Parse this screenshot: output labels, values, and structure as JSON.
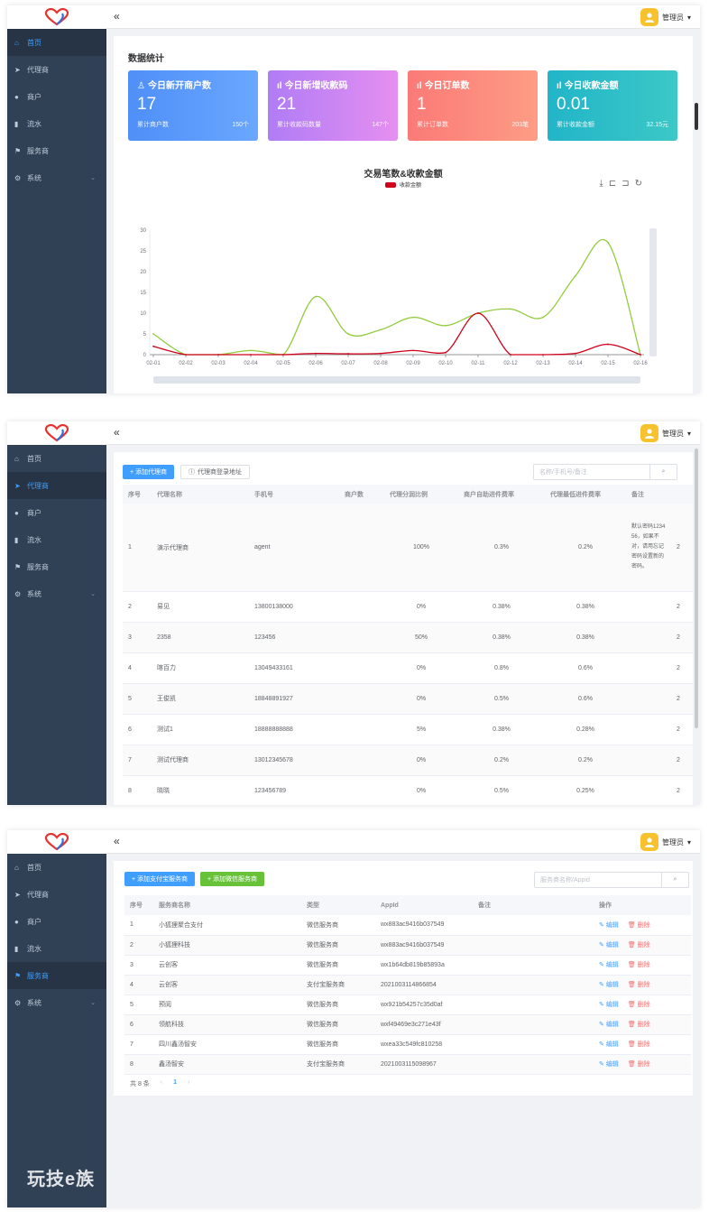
{
  "app": {
    "fold_icon": "«",
    "user_name": "管理员",
    "user_caret": "▾",
    "menu": [
      {
        "icon": "home-icon",
        "glyph": "⌂",
        "label": "首页"
      },
      {
        "icon": "send-icon",
        "glyph": "➤",
        "label": "代理商"
      },
      {
        "icon": "user-icon",
        "glyph": "●",
        "label": "商户"
      },
      {
        "icon": "bar-chart-icon",
        "glyph": "▮",
        "label": "流水"
      },
      {
        "icon": "flag-icon",
        "glyph": "⚑",
        "label": "服务商"
      },
      {
        "icon": "gear-icon",
        "glyph": "⚙",
        "label": "系统"
      }
    ],
    "chevron": "⌄"
  },
  "dashboard": {
    "section_title": "数据统计",
    "stats": [
      {
        "title": "今日新开商户数",
        "icon": "user-outline-icon",
        "glyph": "♙",
        "value": "17",
        "footer_label": "累计商户数",
        "footer_value": "150个",
        "color_from": "#4f8ff7",
        "color_to": "#6aa7ff"
      },
      {
        "title": "今日新增收款码",
        "icon": "bar-icon",
        "glyph": "ıl",
        "value": "21",
        "footer_label": "累计收款码数量",
        "footer_value": "147个",
        "color_from": "#b07cf5",
        "color_to": "#e58ff0"
      },
      {
        "title": "今日订单数",
        "icon": "bar-icon",
        "glyph": "ıl",
        "value": "1",
        "footer_label": "累计订单数",
        "footer_value": "203笔",
        "color_from": "#fb7a77",
        "color_to": "#fd9c85"
      },
      {
        "title": "今日收款金额",
        "icon": "bar-icon",
        "glyph": "ıl",
        "value": "0.01",
        "footer_label": "累计收款金额",
        "footer_value": "32.15元",
        "color_from": "#22b5c8",
        "color_to": "#3cc8c7"
      }
    ]
  },
  "chart_data": {
    "type": "line",
    "title": "交易笔数&收款金额",
    "legend": [
      {
        "name": "收款金额",
        "color": "#d0021b"
      }
    ],
    "legend_position": "top",
    "toolbox": [
      "download-icon",
      "zoom-icon",
      "zoom-reset-icon",
      "restore-icon"
    ],
    "toolbox_glyphs": [
      "⤓",
      "⊏",
      "⊐",
      "↻"
    ],
    "x": [
      "02-01",
      "02-02",
      "02-03",
      "02-04",
      "02-05",
      "02-06",
      "02-07",
      "02-08",
      "02-09",
      "02-10",
      "02-11",
      "02-12",
      "02-13",
      "02-14",
      "02-15",
      "02-16"
    ],
    "yticks": [
      0,
      5,
      10,
      15,
      20,
      25,
      30
    ],
    "ylim": [
      0,
      30
    ],
    "grid": false,
    "series": [
      {
        "color": "#91cc3c",
        "values": [
          5,
          0,
          0,
          1,
          0,
          14,
          5,
          6,
          9,
          7,
          10,
          11,
          9,
          19,
          27,
          0
        ]
      },
      {
        "name": "收款金额",
        "color": "#d0021b",
        "values": [
          2,
          0,
          0,
          0,
          0,
          0.3,
          0.2,
          0.3,
          1,
          0.5,
          10,
          0,
          0,
          0.3,
          2.5,
          0
        ]
      }
    ]
  },
  "agents": {
    "add_button": "+ 添加代理商",
    "login_button": "代理商登录地址",
    "search_placeholder": "名称/手机号/备注",
    "columns": [
      "序号",
      "代理名称",
      "手机号",
      "商户数",
      "代理分润比例",
      "商户自助进件费率",
      "代理最低进件费率",
      "备注"
    ],
    "rows": [
      {
        "no": "1",
        "name": "演示代理商",
        "phone": "agent",
        "merchants": "",
        "ratio": "100%",
        "rate": "0.3%",
        "min_rate": "0.2%",
        "note": "默认密码123456，如果不对，请用忘记密码设置新的密码。",
        "extra": "2"
      },
      {
        "no": "2",
        "name": "易见",
        "phone": "13800138000",
        "merchants": "",
        "ratio": "0%",
        "rate": "0.38%",
        "min_rate": "0.38%",
        "note": "",
        "extra": "2"
      },
      {
        "no": "3",
        "name": "2358",
        "phone": "123456",
        "merchants": "",
        "ratio": "50%",
        "rate": "0.38%",
        "min_rate": "0.38%",
        "note": "",
        "extra": "2"
      },
      {
        "no": "4",
        "name": "喀百力",
        "phone": "13049433161",
        "merchants": "",
        "ratio": "0%",
        "rate": "0.8%",
        "min_rate": "0.6%",
        "note": "",
        "extra": "2"
      },
      {
        "no": "5",
        "name": "王俊凯",
        "phone": "18848891927",
        "merchants": "",
        "ratio": "0%",
        "rate": "0.5%",
        "min_rate": "0.6%",
        "note": "",
        "extra": "2"
      },
      {
        "no": "6",
        "name": "测试1",
        "phone": "18888888888",
        "merchants": "",
        "ratio": "5%",
        "rate": "0.38%",
        "min_rate": "0.28%",
        "note": "",
        "extra": "2"
      },
      {
        "no": "7",
        "name": "测试代理商",
        "phone": "13012345678",
        "merchants": "",
        "ratio": "0%",
        "rate": "0.2%",
        "min_rate": "0.2%",
        "note": "",
        "extra": "2"
      },
      {
        "no": "8",
        "name": "晓晓",
        "phone": "123456789",
        "merchants": "",
        "ratio": "0%",
        "rate": "0.5%",
        "min_rate": "0.25%",
        "note": "",
        "extra": "2"
      }
    ]
  },
  "providers": {
    "add_wechat_button": "+ 添加支付宝服务商",
    "add_alipay_button": "+ 添加微信服务商",
    "search_placeholder": "服务商名称/Appid",
    "columns": [
      "序号",
      "服务商名称",
      "类型",
      "AppId",
      "备注",
      "操作"
    ],
    "edit_label": "编辑",
    "delete_label": "删除",
    "rows": [
      {
        "no": "1",
        "name": "小狐狸聚合支付",
        "type": "微信服务商",
        "appid": "wx883ac9416b037549"
      },
      {
        "no": "2",
        "name": "小狐狸科技",
        "type": "微信服务商",
        "appid": "wx883ac9416b037549"
      },
      {
        "no": "3",
        "name": "云创客",
        "type": "微信服务商",
        "appid": "wx1b64db819b85893a"
      },
      {
        "no": "4",
        "name": "云创客",
        "type": "支付宝服务商",
        "appid": "2021003114866854"
      },
      {
        "no": "5",
        "name": "预阅",
        "type": "微信服务商",
        "appid": "wx921b54257c35d0af"
      },
      {
        "no": "6",
        "name": "领航科技",
        "type": "微信服务商",
        "appid": "wxf49469e3c271e43f"
      },
      {
        "no": "7",
        "name": "四川鑫汤智安",
        "type": "微信服务商",
        "appid": "wxea33c549fc810258"
      },
      {
        "no": "8",
        "name": "鑫汤智安",
        "type": "支付宝服务商",
        "appid": "2021003115098967"
      }
    ],
    "total_label": "共 8 条",
    "prev": "‹",
    "page": "1",
    "next": "›"
  },
  "watermark": "玩技e族"
}
